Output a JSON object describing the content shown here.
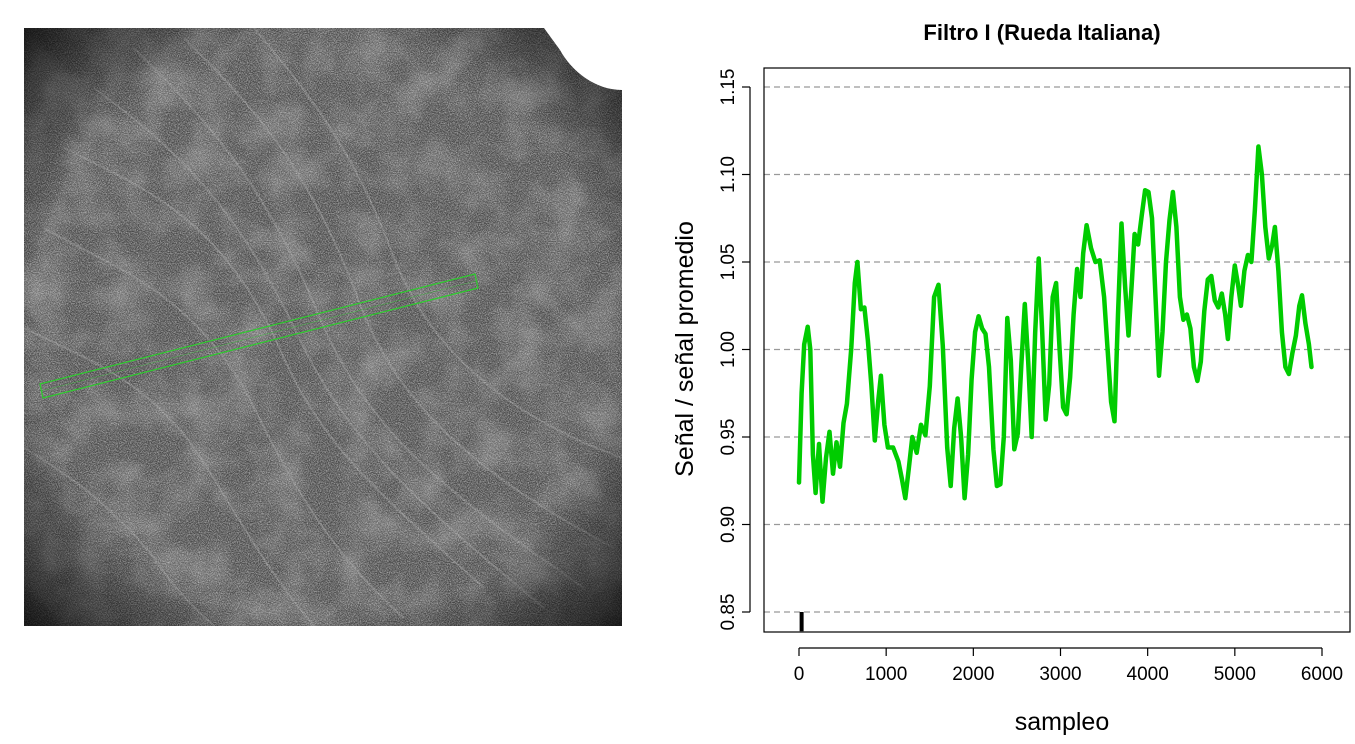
{
  "micrograph": {
    "roi_color": "#2ecc2e"
  },
  "chart_data": {
    "type": "line",
    "title": "Filtro I (Rueda Italiana)",
    "xlabel": "sampleo",
    "ylabel": "Señal / señal promedio",
    "xlim": [
      0,
      6100
    ],
    "ylim": [
      0.85,
      1.15
    ],
    "x_ticks": [
      "0",
      "1000",
      "2000",
      "3000",
      "4000",
      "5000",
      "6000"
    ],
    "y_ticks": [
      "0.85",
      "0.90",
      "0.95",
      "1.00",
      "1.05",
      "1.10",
      "1.15"
    ],
    "y_gridlines": [
      0.85,
      0.9,
      0.95,
      1.0,
      1.05,
      1.1,
      1.15
    ],
    "grid": "horizontal dashed",
    "marker": {
      "x": 30,
      "y_from": 0.839,
      "y_to": 0.85
    },
    "series": [
      {
        "color": "#00cc00",
        "points": [
          [
            0,
            0.924
          ],
          [
            30,
            0.975
          ],
          [
            60,
            1.003
          ],
          [
            100,
            1.013
          ],
          [
            130,
            1.0
          ],
          [
            160,
            0.94
          ],
          [
            190,
            0.918
          ],
          [
            230,
            0.946
          ],
          [
            270,
            0.913
          ],
          [
            310,
            0.938
          ],
          [
            350,
            0.953
          ],
          [
            390,
            0.929
          ],
          [
            430,
            0.947
          ],
          [
            470,
            0.933
          ],
          [
            510,
            0.958
          ],
          [
            550,
            0.969
          ],
          [
            600,
            1.001
          ],
          [
            640,
            1.038
          ],
          [
            670,
            1.05
          ],
          [
            710,
            1.023
          ],
          [
            750,
            1.024
          ],
          [
            790,
            1.005
          ],
          [
            830,
            0.98
          ],
          [
            870,
            0.948
          ],
          [
            910,
            0.971
          ],
          [
            940,
            0.985
          ],
          [
            980,
            0.957
          ],
          [
            1020,
            0.944
          ],
          [
            1080,
            0.944
          ],
          [
            1140,
            0.936
          ],
          [
            1180,
            0.926
          ],
          [
            1220,
            0.915
          ],
          [
            1260,
            0.932
          ],
          [
            1300,
            0.95
          ],
          [
            1350,
            0.941
          ],
          [
            1400,
            0.957
          ],
          [
            1450,
            0.951
          ],
          [
            1500,
            0.979
          ],
          [
            1550,
            1.03
          ],
          [
            1600,
            1.037
          ],
          [
            1650,
            1.002
          ],
          [
            1700,
            0.944
          ],
          [
            1740,
            0.922
          ],
          [
            1780,
            0.955
          ],
          [
            1820,
            0.972
          ],
          [
            1860,
            0.95
          ],
          [
            1900,
            0.915
          ],
          [
            1940,
            0.94
          ],
          [
            1980,
            0.983
          ],
          [
            2020,
            1.01
          ],
          [
            2060,
            1.019
          ],
          [
            2100,
            1.012
          ],
          [
            2140,
            1.009
          ],
          [
            2180,
            0.99
          ],
          [
            2230,
            0.943
          ],
          [
            2270,
            0.922
          ],
          [
            2310,
            0.923
          ],
          [
            2350,
            0.95
          ],
          [
            2390,
            1.018
          ],
          [
            2430,
            0.994
          ],
          [
            2470,
            0.943
          ],
          [
            2510,
            0.952
          ],
          [
            2550,
            0.991
          ],
          [
            2590,
            1.026
          ],
          [
            2630,
            0.993
          ],
          [
            2670,
            0.95
          ],
          [
            2710,
            1.01
          ],
          [
            2750,
            1.052
          ],
          [
            2790,
            1.01
          ],
          [
            2830,
            0.96
          ],
          [
            2870,
            0.98
          ],
          [
            2910,
            1.03
          ],
          [
            2950,
            1.038
          ],
          [
            2990,
            1.0
          ],
          [
            3030,
            0.967
          ],
          [
            3070,
            0.963
          ],
          [
            3110,
            0.984
          ],
          [
            3150,
            1.02
          ],
          [
            3190,
            1.046
          ],
          [
            3230,
            1.03
          ],
          [
            3260,
            1.055
          ],
          [
            3300,
            1.071
          ],
          [
            3350,
            1.058
          ],
          [
            3400,
            1.05
          ],
          [
            3450,
            1.051
          ],
          [
            3500,
            1.03
          ],
          [
            3540,
            1.0
          ],
          [
            3580,
            0.97
          ],
          [
            3620,
            0.959
          ],
          [
            3660,
            1.02
          ],
          [
            3700,
            1.072
          ],
          [
            3740,
            1.037
          ],
          [
            3780,
            1.008
          ],
          [
            3820,
            1.04
          ],
          [
            3850,
            1.066
          ],
          [
            3890,
            1.06
          ],
          [
            3930,
            1.076
          ],
          [
            3970,
            1.091
          ],
          [
            4010,
            1.09
          ],
          [
            4050,
            1.075
          ],
          [
            4090,
            1.03
          ],
          [
            4130,
            0.985
          ],
          [
            4170,
            1.01
          ],
          [
            4210,
            1.05
          ],
          [
            4250,
            1.074
          ],
          [
            4290,
            1.09
          ],
          [
            4330,
            1.07
          ],
          [
            4370,
            1.03
          ],
          [
            4410,
            1.017
          ],
          [
            4450,
            1.02
          ],
          [
            4490,
            1.012
          ],
          [
            4530,
            0.99
          ],
          [
            4570,
            0.982
          ],
          [
            4610,
            0.993
          ],
          [
            4650,
            1.022
          ],
          [
            4690,
            1.04
          ],
          [
            4730,
            1.042
          ],
          [
            4770,
            1.028
          ],
          [
            4810,
            1.024
          ],
          [
            4850,
            1.032
          ],
          [
            4890,
            1.02
          ],
          [
            4920,
            1.006
          ],
          [
            4960,
            1.03
          ],
          [
            5000,
            1.048
          ],
          [
            5040,
            1.036
          ],
          [
            5070,
            1.025
          ],
          [
            5110,
            1.045
          ],
          [
            5150,
            1.054
          ],
          [
            5190,
            1.05
          ],
          [
            5230,
            1.08
          ],
          [
            5270,
            1.116
          ],
          [
            5310,
            1.1
          ],
          [
            5350,
            1.07
          ],
          [
            5390,
            1.052
          ],
          [
            5430,
            1.06
          ],
          [
            5460,
            1.07
          ],
          [
            5500,
            1.045
          ],
          [
            5540,
            1.01
          ],
          [
            5580,
            0.99
          ],
          [
            5620,
            0.986
          ],
          [
            5660,
            0.998
          ],
          [
            5700,
            1.008
          ],
          [
            5740,
            1.025
          ],
          [
            5770,
            1.031
          ],
          [
            5810,
            1.015
          ],
          [
            5850,
            1.003
          ],
          [
            5880,
            0.99
          ]
        ]
      }
    ]
  }
}
